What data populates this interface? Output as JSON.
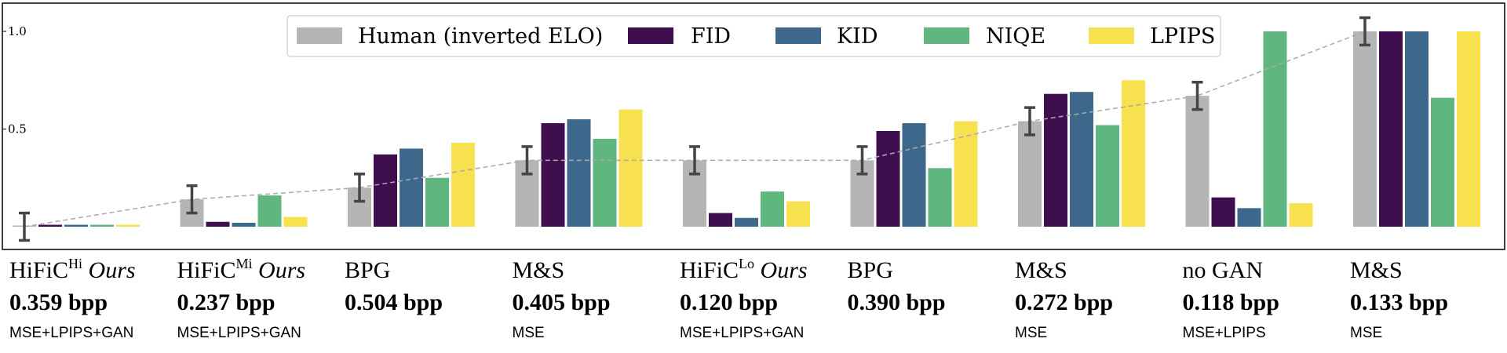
{
  "chart_data": {
    "type": "bar",
    "yticks": [
      "1.0",
      "0.5"
    ],
    "ylim": [
      -0.12,
      1.1
    ],
    "grid": false,
    "legend_position": "top-center",
    "series": [
      {
        "name": "Human (inverted ELO)",
        "color": "#b5b5b5",
        "values": [
          0.0,
          0.14,
          0.2,
          0.34,
          0.34,
          0.34,
          0.54,
          0.67,
          1.0
        ],
        "err": [
          0.07,
          0.07,
          0.07,
          0.07,
          0.07,
          0.07,
          0.07,
          0.07,
          0.07
        ]
      },
      {
        "name": "FID",
        "color": "#3f0e4f",
        "values": [
          0.01,
          0.025,
          0.37,
          0.53,
          0.07,
          0.49,
          0.68,
          0.15,
          1.0
        ]
      },
      {
        "name": "KID",
        "color": "#3e688b",
        "values": [
          0.01,
          0.02,
          0.4,
          0.55,
          0.045,
          0.53,
          0.69,
          0.095,
          1.0
        ]
      },
      {
        "name": "NIQE",
        "color": "#5fb67e",
        "values": [
          0.01,
          0.16,
          0.25,
          0.45,
          0.18,
          0.3,
          0.52,
          1.0,
          0.66
        ]
      },
      {
        "name": "LPIPS",
        "color": "#f7e14f",
        "values": [
          0.01,
          0.05,
          0.43,
          0.6,
          0.13,
          0.54,
          0.75,
          0.12,
          1.0
        ]
      }
    ],
    "trend": "Human (inverted ELO)",
    "categories": [
      {
        "name": "HiFiC",
        "sup": "Hi",
        "ours": "Ours",
        "bpp": "0.359 bpp",
        "loss": "MSE+LPIPS+GAN"
      },
      {
        "name": "HiFiC",
        "sup": "Mi",
        "ours": "Ours",
        "bpp": "0.237 bpp",
        "loss": "MSE+LPIPS+GAN"
      },
      {
        "name": "BPG",
        "sup": "",
        "ours": "",
        "bpp": "0.504 bpp",
        "loss": ""
      },
      {
        "name": "M&S",
        "sup": "",
        "ours": "",
        "bpp": "0.405 bpp",
        "loss": "MSE"
      },
      {
        "name": "HiFiC",
        "sup": "Lo",
        "ours": "Ours",
        "bpp": "0.120 bpp",
        "loss": "MSE+LPIPS+GAN"
      },
      {
        "name": "BPG",
        "sup": "",
        "ours": "",
        "bpp": "0.390 bpp",
        "loss": ""
      },
      {
        "name": "M&S",
        "sup": "",
        "ours": "",
        "bpp": "0.272 bpp",
        "loss": "MSE"
      },
      {
        "name": "no GAN",
        "sup": "",
        "ours": "",
        "bpp": "0.118 bpp",
        "loss": "MSE+LPIPS"
      },
      {
        "name": "M&S",
        "sup": "",
        "ours": "",
        "bpp": "0.133 bpp",
        "loss": "MSE"
      }
    ]
  }
}
